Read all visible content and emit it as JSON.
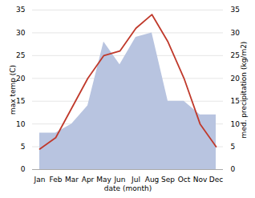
{
  "chart_data": {
    "type": "line",
    "categories": [
      "Jan",
      "Feb",
      "Mar",
      "Apr",
      "May",
      "Jun",
      "Jul",
      "Aug",
      "Sep",
      "Oct",
      "Nov",
      "Dec"
    ],
    "series": [
      {
        "type": "line",
        "color": "#c0392b",
        "values": [
          4.5,
          7.0,
          13.5,
          20.0,
          25.0,
          26.0,
          31.0,
          34.0,
          28.0,
          20.0,
          10.0,
          5.0
        ]
      },
      {
        "type": "area",
        "axis": "y2",
        "color": "#b8c4e0",
        "values": [
          8,
          8,
          10,
          14,
          28,
          23,
          29,
          30,
          15,
          15,
          12,
          12
        ]
      }
    ],
    "xlabel": "date (month)",
    "ylabel": "max temp (C)",
    "y2label": "med. precipitation (kg/m2)",
    "ylim": [
      0,
      35
    ],
    "yticks": [
      0,
      5,
      10,
      15,
      20,
      25,
      30,
      35
    ],
    "y2lim": [
      0,
      35
    ],
    "y2ticks": [
      0,
      5,
      10,
      15,
      20,
      25,
      30,
      35
    ],
    "grid": true
  }
}
